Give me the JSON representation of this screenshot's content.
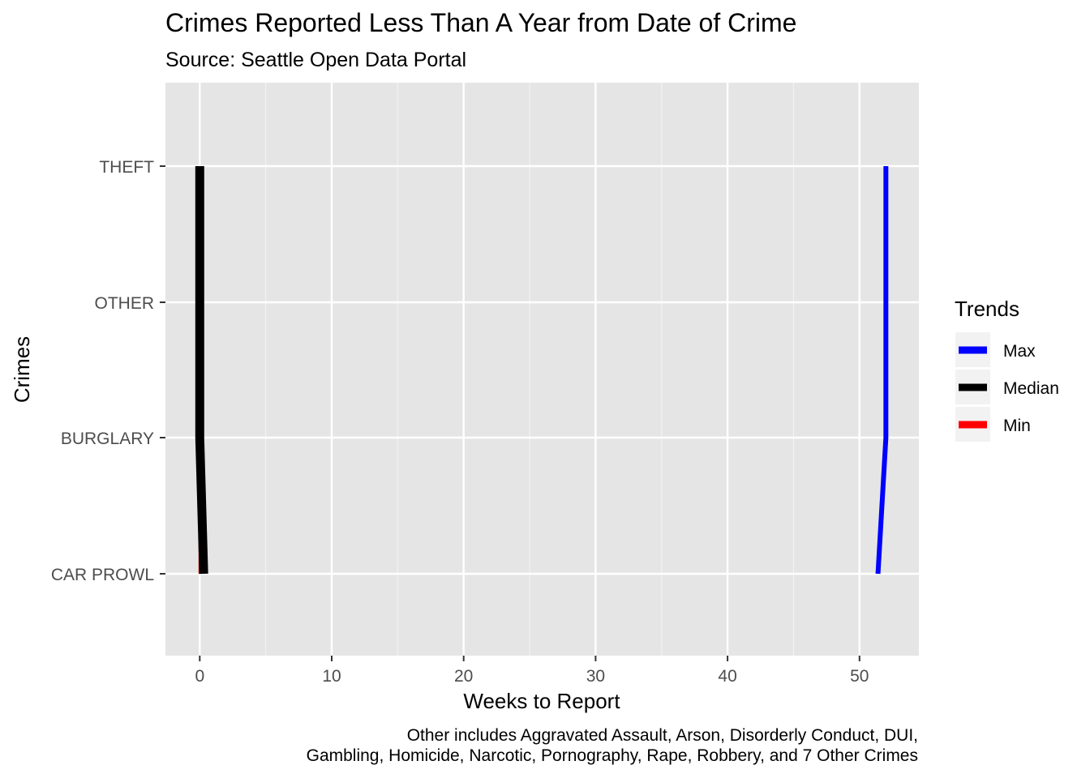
{
  "chart_data": {
    "type": "line",
    "title": "Crimes Reported Less Than A Year from Date of Crime",
    "subtitle": "Source: Seattle Open Data Portal",
    "xlabel": "Weeks to Report",
    "ylabel": "Crimes",
    "caption_lines": [
      "Other includes Aggravated Assault, Arson, Disorderly Conduct, DUI,",
      "Gambling, Homicide, Narcotic, Pornography, Rape, Robbery, and 7 Other Crimes"
    ],
    "categories": [
      "CAR PROWL",
      "BURGLARY",
      "OTHER",
      "THEFT"
    ],
    "xlim": [
      -2.6,
      54.5
    ],
    "x_ticks": [
      0,
      10,
      20,
      30,
      40,
      50
    ],
    "x_tick_labels": [
      "0",
      "10",
      "20",
      "30",
      "40",
      "50"
    ],
    "x_minor_ticks": [
      5,
      15,
      25,
      35,
      45
    ],
    "grid": true,
    "legend_position": "right",
    "legend_title": "Trends",
    "series": [
      {
        "name": "Max",
        "color": "#0000ff",
        "values": [
          51.4,
          52.0,
          52.0,
          52.0
        ],
        "width": 6
      },
      {
        "name": "Median",
        "color": "#000000",
        "values": [
          0.3,
          0.0,
          0.0,
          0.0
        ],
        "width": 11
      },
      {
        "name": "Min",
        "color": "#ff0000",
        "values": [
          0.0,
          0.0,
          0.0,
          0.0
        ],
        "width": 3
      }
    ]
  }
}
